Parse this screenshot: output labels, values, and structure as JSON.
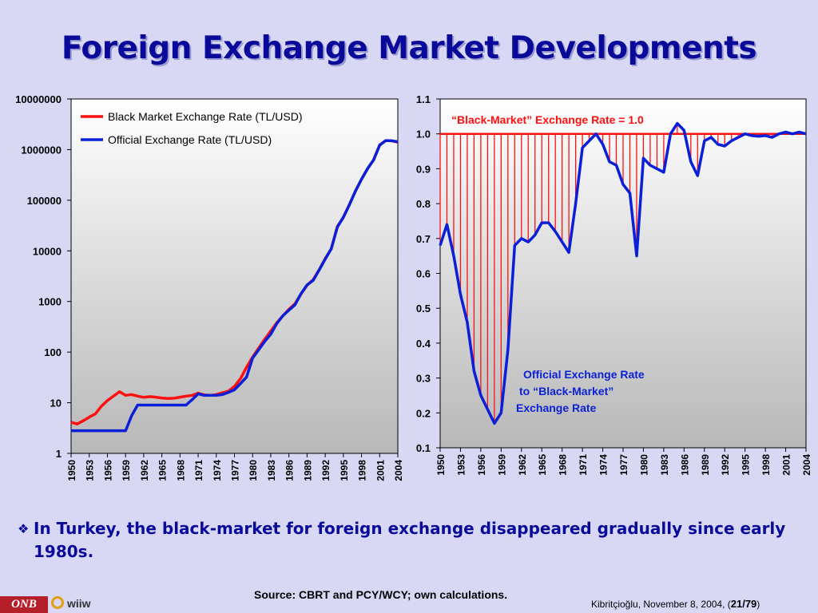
{
  "slide": {
    "title": "Foreign Exchange Market Developments",
    "bullet": "In Turkey, the black-market for foreign exchange disappeared gradually since early 1980s.",
    "source": "Source: CBRT and PCY/WCY; own calculations.",
    "footer_text": "Kibritçioğlu, November 8, 2004, (",
    "footer_page": "21/79",
    "footer_close": ")",
    "logo_onb": "ONB",
    "logo_wiiw": "wiiw"
  },
  "chart_data": [
    {
      "type": "line",
      "yscale": "log",
      "ylim": [
        1,
        10000000
      ],
      "xlim": [
        1950,
        2004
      ],
      "yticks": [
        "1",
        "10",
        "100",
        "1000",
        "10000",
        "100000",
        "1000000",
        "10000000"
      ],
      "xticks": [
        "1950",
        "1953",
        "1956",
        "1959",
        "1962",
        "1965",
        "1968",
        "1971",
        "1974",
        "1977",
        "1980",
        "1983",
        "1986",
        "1989",
        "1992",
        "1995",
        "1998",
        "2001",
        "2004"
      ],
      "legend_position": "top-left",
      "series": [
        {
          "name": "Black Market Exchange Rate (TL/USD)",
          "color": "#ff1010",
          "x": [
            1950,
            1951,
            1952,
            1953,
            1954,
            1955,
            1956,
            1957,
            1958,
            1959,
            1960,
            1961,
            1962,
            1963,
            1964,
            1965,
            1966,
            1967,
            1968,
            1969,
            1970,
            1971,
            1972,
            1973,
            1974,
            1975,
            1976,
            1977,
            1978,
            1979,
            1980,
            1981,
            1982,
            1983,
            1984,
            1985,
            1986,
            1987,
            1988,
            1989,
            1990,
            1991,
            1992,
            1993,
            1994,
            1995,
            1996,
            1997,
            1998,
            1999,
            2000,
            2001,
            2002,
            2003,
            2004
          ],
          "values": [
            4.1,
            3.8,
            4.4,
            5.2,
            6,
            8.5,
            11,
            13.5,
            16.5,
            14,
            14.5,
            13.5,
            12.8,
            13.2,
            12.9,
            12.4,
            12.1,
            12.3,
            12.9,
            13.5,
            14,
            15.5,
            14.3,
            14,
            14.5,
            15.7,
            17,
            21,
            30,
            50,
            80,
            120,
            180,
            260,
            380,
            520,
            700,
            900,
            1400,
            2100,
            2700,
            4200,
            7000,
            11000,
            30000,
            46000,
            82000,
            152000,
            260000,
            420000,
            630000,
            1230000,
            1510000,
            1490000,
            1400000
          ]
        },
        {
          "name": "Official Exchange Rate (TL/USD)",
          "color": "#0a1fd8",
          "x": [
            1950,
            1951,
            1952,
            1953,
            1954,
            1955,
            1956,
            1957,
            1958,
            1959,
            1960,
            1961,
            1962,
            1963,
            1964,
            1965,
            1966,
            1967,
            1968,
            1969,
            1970,
            1971,
            1972,
            1973,
            1974,
            1975,
            1976,
            1977,
            1978,
            1979,
            1980,
            1981,
            1982,
            1983,
            1984,
            1985,
            1986,
            1987,
            1988,
            1989,
            1990,
            1991,
            1992,
            1993,
            1994,
            1995,
            1996,
            1997,
            1998,
            1999,
            2000,
            2001,
            2002,
            2003,
            2004
          ],
          "values": [
            2.8,
            2.8,
            2.8,
            2.8,
            2.8,
            2.8,
            2.8,
            2.8,
            2.8,
            2.8,
            5.5,
            9,
            9,
            9,
            9,
            9,
            9,
            9,
            9,
            9,
            11.5,
            15,
            14,
            14,
            14,
            14.5,
            16,
            18,
            24,
            32,
            76,
            111,
            163,
            226,
            366,
            522,
            674,
            857,
            1422,
            2122,
            2609,
            4172,
            6872,
            10985,
            29609,
            45845,
            81405,
            151865,
            260724,
            418783,
            625219,
            1225588,
            1507226,
            1493000,
            1430000
          ]
        }
      ]
    },
    {
      "type": "line",
      "ylim": [
        0.1,
        1.1
      ],
      "xlim": [
        1950,
        2004
      ],
      "yticks": [
        "0.1",
        "0.2",
        "0.3",
        "0.4",
        "0.5",
        "0.6",
        "0.7",
        "0.8",
        "0.9",
        "1.0",
        "1.1"
      ],
      "xticks": [
        "1950",
        "1953",
        "1956",
        "1959",
        "1962",
        "1965",
        "1968",
        "1971",
        "1974",
        "1977",
        "1980",
        "1983",
        "1986",
        "1989",
        "1992",
        "1995",
        "1998",
        "2001",
        "2004"
      ],
      "reference_value": 1.0,
      "reference_label": "“Black-Market” Exchange Rate = 1.0",
      "annotation": "Official Exchange Rate to “Black-Market” Exchange Rate",
      "annotation_lines": [
        "Official Exchange Rate",
        "to “Black-Market”",
        "Exchange Rate"
      ],
      "series": [
        {
          "name": "Official Exchange Rate to “Black-Market” Exchange Rate",
          "color": "#0a1fd8",
          "x": [
            1950,
            1951,
            1952,
            1953,
            1954,
            1955,
            1956,
            1957,
            1958,
            1959,
            1960,
            1961,
            1962,
            1963,
            1964,
            1965,
            1966,
            1967,
            1968,
            1969,
            1970,
            1971,
            1972,
            1973,
            1974,
            1975,
            1976,
            1977,
            1978,
            1979,
            1980,
            1981,
            1982,
            1983,
            1984,
            1985,
            1986,
            1987,
            1988,
            1989,
            1990,
            1991,
            1992,
            1993,
            1994,
            1995,
            1996,
            1997,
            1998,
            1999,
            2000,
            2001,
            2002,
            2003,
            2004
          ],
          "values": [
            0.68,
            0.74,
            0.65,
            0.54,
            0.46,
            0.32,
            0.25,
            0.21,
            0.17,
            0.2,
            0.38,
            0.68,
            0.7,
            0.69,
            0.71,
            0.745,
            0.745,
            0.72,
            0.69,
            0.66,
            0.8,
            0.96,
            0.98,
            1.0,
            0.97,
            0.92,
            0.91,
            0.855,
            0.83,
            0.65,
            0.93,
            0.91,
            0.9,
            0.89,
            1.0,
            1.03,
            1.01,
            0.92,
            0.88,
            0.98,
            0.99,
            0.97,
            0.965,
            0.98,
            0.99,
            1.0,
            0.995,
            0.993,
            0.995,
            0.99,
            1.0,
            1.005,
            1.0,
            1.005,
            1.0
          ]
        }
      ]
    }
  ]
}
